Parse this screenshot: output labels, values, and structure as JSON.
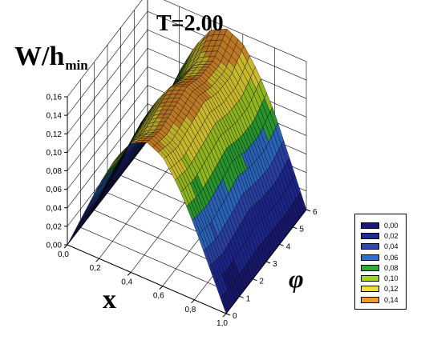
{
  "chart_data": {
    "type": "surface",
    "title": "T=2.00",
    "zlabel": "W/h",
    "zlabel_sub": "min",
    "xlabel": "x",
    "ylabel": "φ",
    "xlim": [
      0.0,
      1.0
    ],
    "ylim": [
      0,
      6
    ],
    "zlim": [
      0.0,
      0.16
    ],
    "x_ticks": [
      "0,0",
      "0,2",
      "0,4",
      "0,6",
      "0,8",
      "1,0"
    ],
    "y_ticks": [
      "0",
      "1",
      "2",
      "3",
      "4",
      "5",
      "6"
    ],
    "z_ticks": [
      "0,00",
      "0,02",
      "0,04",
      "0,06",
      "0,08",
      "0,10",
      "0,12",
      "0,14",
      "0,16"
    ],
    "grid": true,
    "legend_position": "bottom-right",
    "legend": [
      {
        "label": "0,00",
        "color": "#1a1a7a"
      },
      {
        "label": "0,02",
        "color": "#1f2a9a"
      },
      {
        "label": "0,04",
        "color": "#2f47b5"
      },
      {
        "label": "0,06",
        "color": "#2f6fcf"
      },
      {
        "label": "0,08",
        "color": "#2eaa36"
      },
      {
        "label": "0,10",
        "color": "#a8d424"
      },
      {
        "label": "0,12",
        "color": "#f2de36"
      },
      {
        "label": "0,14",
        "color": "#f29a2e"
      }
    ],
    "surface_samples": {
      "x": [
        0.0,
        0.1,
        0.2,
        0.3,
        0.4,
        0.5,
        0.6,
        0.7,
        0.8,
        0.9,
        1.0
      ],
      "phi": [
        0,
        1,
        2,
        3,
        4,
        5,
        6
      ],
      "w": [
        [
          0.0,
          0.04,
          0.08,
          0.115,
          0.14,
          0.148,
          0.14,
          0.115,
          0.08,
          0.04,
          0.0
        ],
        [
          0.0,
          0.035,
          0.075,
          0.11,
          0.133,
          0.142,
          0.133,
          0.11,
          0.075,
          0.035,
          0.0
        ],
        [
          0.0,
          0.04,
          0.08,
          0.115,
          0.139,
          0.147,
          0.139,
          0.115,
          0.08,
          0.04,
          0.0
        ],
        [
          0.0,
          0.045,
          0.088,
          0.12,
          0.145,
          0.152,
          0.145,
          0.12,
          0.088,
          0.045,
          0.0
        ],
        [
          0.0,
          0.04,
          0.08,
          0.113,
          0.136,
          0.144,
          0.136,
          0.113,
          0.08,
          0.04,
          0.0
        ],
        [
          0.0,
          0.038,
          0.078,
          0.112,
          0.135,
          0.143,
          0.135,
          0.112,
          0.078,
          0.038,
          0.0
        ],
        [
          0.0,
          0.045,
          0.09,
          0.125,
          0.15,
          0.158,
          0.15,
          0.125,
          0.09,
          0.045,
          0.0
        ]
      ]
    }
  },
  "colors": {
    "background": "#ffffff",
    "axis": "#000000",
    "grid": "#000000",
    "surface_line": "#000000"
  }
}
